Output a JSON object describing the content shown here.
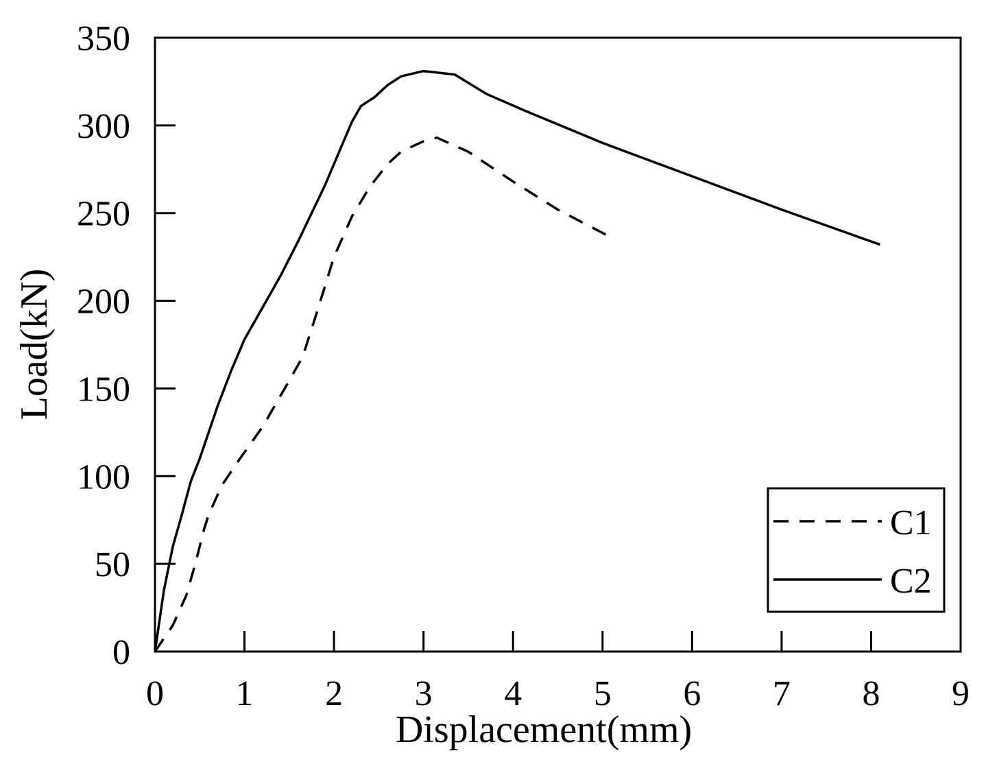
{
  "chart_data": {
    "type": "line",
    "title": "",
    "xlabel": "Displacement(mm)",
    "ylabel": "Load(kN)",
    "xlim": [
      0,
      9
    ],
    "ylim": [
      0,
      350
    ],
    "x_ticks": [
      0,
      1,
      2,
      3,
      4,
      5,
      6,
      7,
      8,
      9
    ],
    "y_ticks": [
      0,
      50,
      100,
      150,
      200,
      250,
      300,
      350
    ],
    "grid": false,
    "legend_position": "bottom-right",
    "series": [
      {
        "name": "C1",
        "style": "dashed",
        "color": "#000000",
        "points": [
          [
            0,
            0
          ],
          [
            0.2,
            15
          ],
          [
            0.35,
            32
          ],
          [
            0.45,
            50
          ],
          [
            0.55,
            70
          ],
          [
            0.6,
            78
          ],
          [
            0.75,
            95
          ],
          [
            0.95,
            110
          ],
          [
            1.2,
            128
          ],
          [
            1.45,
            150
          ],
          [
            1.65,
            168
          ],
          [
            1.8,
            192
          ],
          [
            2.0,
            225
          ],
          [
            2.2,
            248
          ],
          [
            2.4,
            265
          ],
          [
            2.6,
            278
          ],
          [
            2.75,
            285
          ],
          [
            3.0,
            291
          ],
          [
            3.15,
            293
          ],
          [
            3.5,
            285
          ],
          [
            4.0,
            268
          ],
          [
            4.5,
            252
          ],
          [
            5.1,
            236
          ]
        ]
      },
      {
        "name": "C2",
        "style": "solid",
        "color": "#000000",
        "points": [
          [
            0,
            0
          ],
          [
            0.1,
            35
          ],
          [
            0.2,
            60
          ],
          [
            0.3,
            78
          ],
          [
            0.4,
            97
          ],
          [
            0.5,
            110
          ],
          [
            0.6,
            125
          ],
          [
            0.7,
            140
          ],
          [
            0.85,
            160
          ],
          [
            1.0,
            178
          ],
          [
            1.2,
            196
          ],
          [
            1.4,
            214
          ],
          [
            1.6,
            234
          ],
          [
            1.75,
            250
          ],
          [
            1.9,
            266
          ],
          [
            2.05,
            284
          ],
          [
            2.2,
            302
          ],
          [
            2.3,
            311
          ],
          [
            2.45,
            316
          ],
          [
            2.6,
            323
          ],
          [
            2.75,
            328
          ],
          [
            3.0,
            331
          ],
          [
            3.35,
            329
          ],
          [
            3.7,
            318
          ],
          [
            4.15,
            308
          ],
          [
            5.0,
            290
          ],
          [
            6.0,
            271
          ],
          [
            7.0,
            252
          ],
          [
            8.1,
            232
          ]
        ]
      }
    ]
  }
}
